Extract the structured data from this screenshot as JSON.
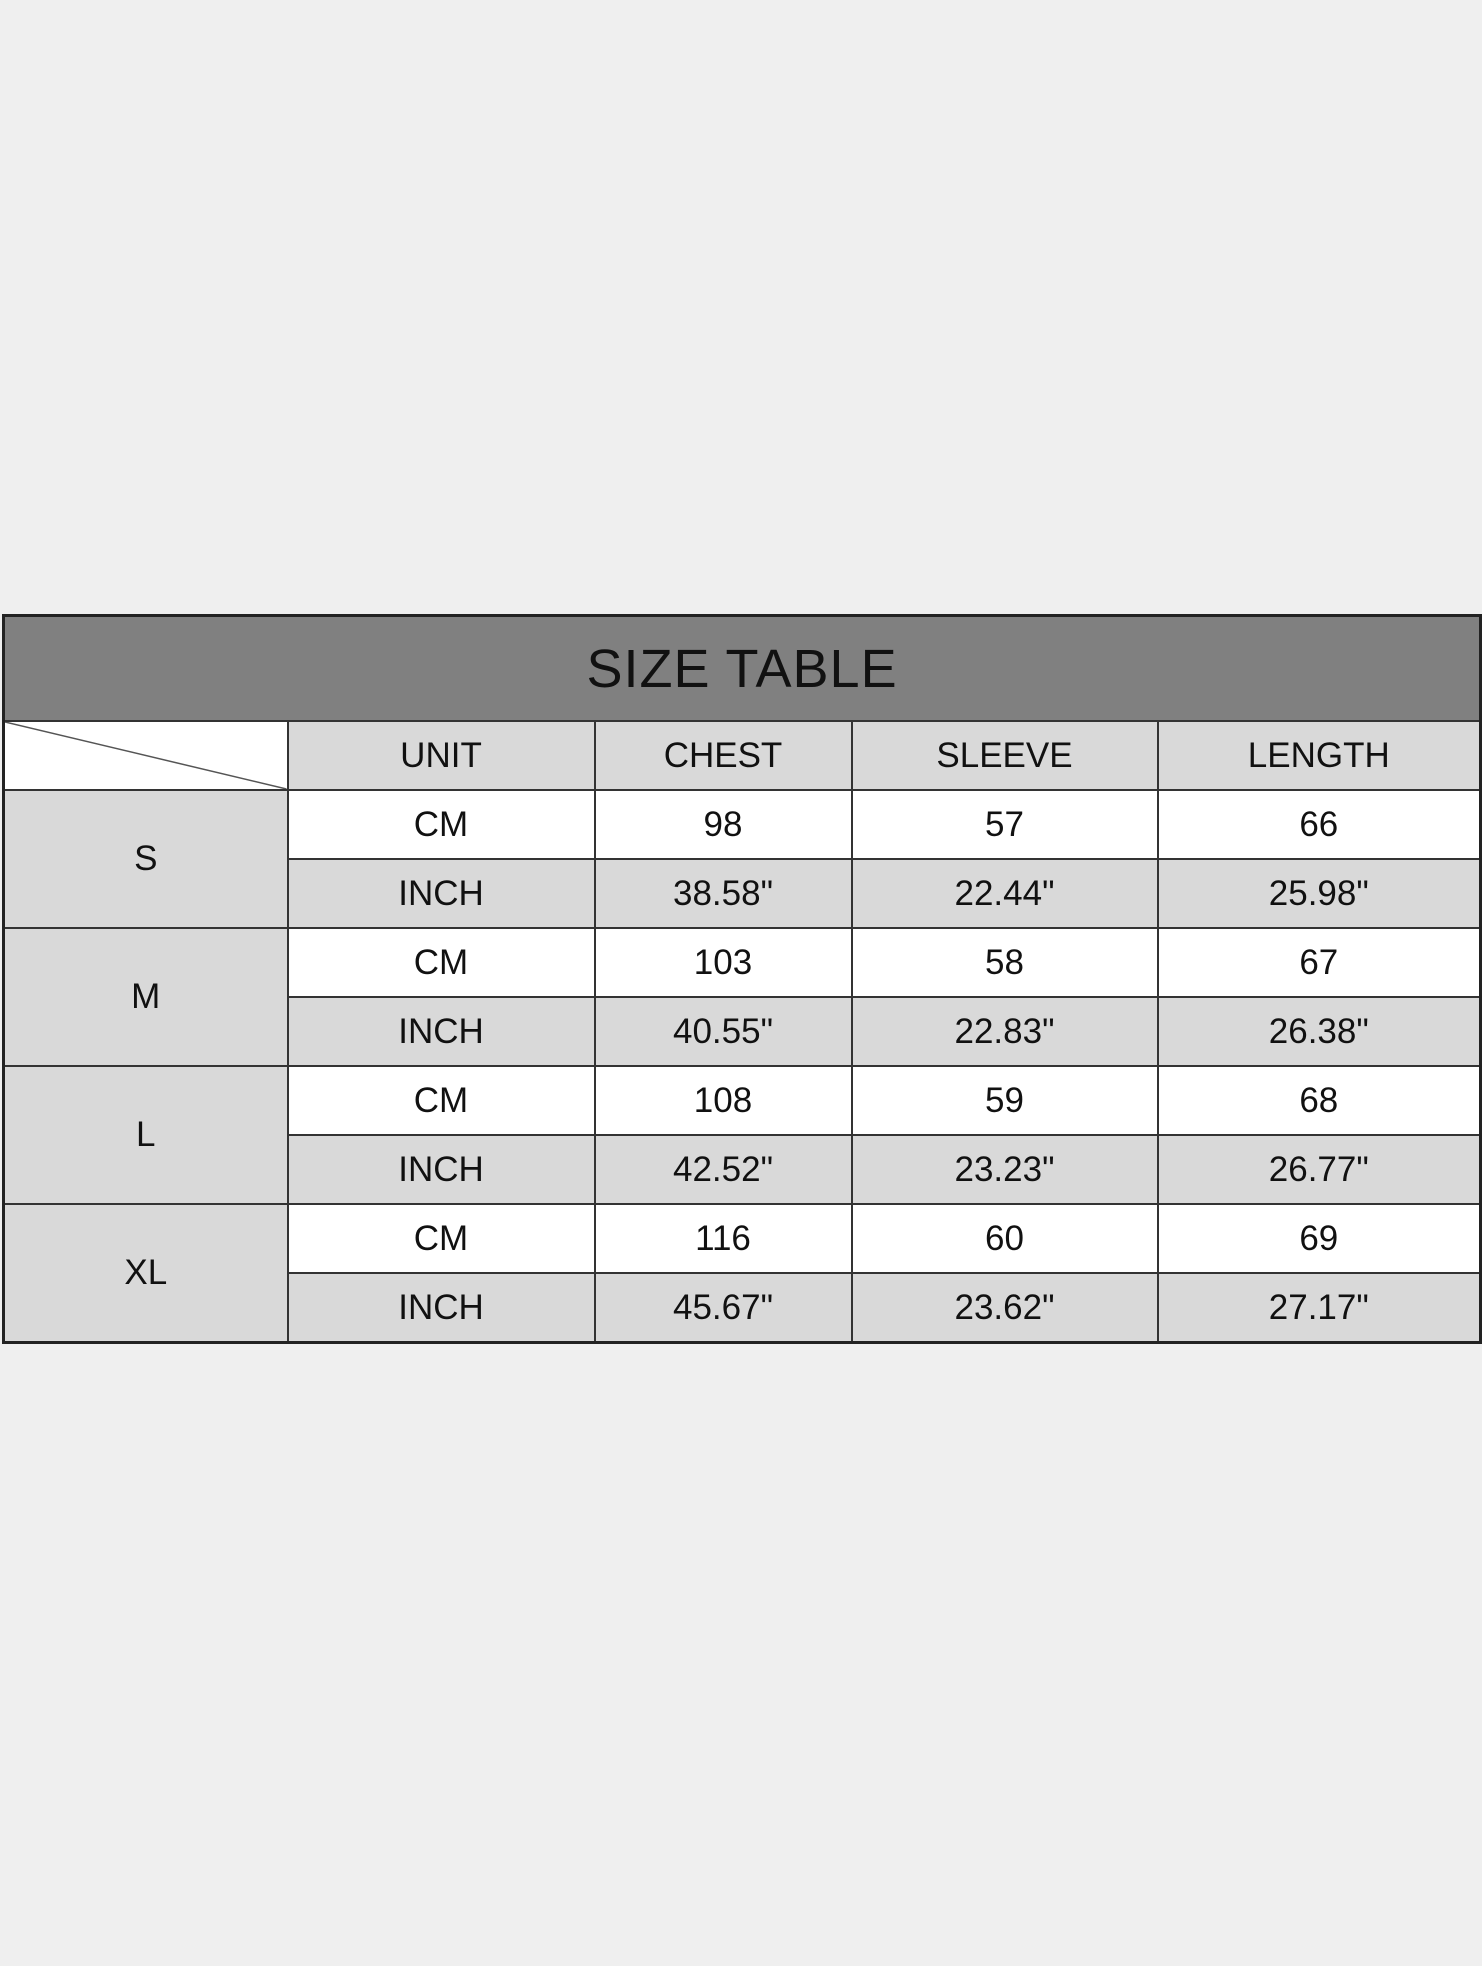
{
  "title": "SIZE TABLE",
  "headers": [
    "UNIT",
    "CHEST",
    "SLEEVE",
    "LENGTH"
  ],
  "rows": [
    {
      "size": "S",
      "cm": [
        "CM",
        "98",
        "57",
        "66"
      ],
      "inch": [
        "INCH",
        "38.58\"",
        "22.44\"",
        "25.98\""
      ]
    },
    {
      "size": "M",
      "cm": [
        "CM",
        "103",
        "58",
        "67"
      ],
      "inch": [
        "INCH",
        "40.55\"",
        "22.83\"",
        "26.38\""
      ]
    },
    {
      "size": "L",
      "cm": [
        "CM",
        "108",
        "59",
        "68"
      ],
      "inch": [
        "INCH",
        "42.52\"",
        "23.23\"",
        "26.77\""
      ]
    },
    {
      "size": "XL",
      "cm": [
        "CM",
        "116",
        "60",
        "69"
      ],
      "inch": [
        "INCH",
        "45.67\"",
        "23.62\"",
        "27.17\""
      ]
    }
  ],
  "colors": {
    "title_bg": "#808080",
    "shaded_cell": "#d9d9d9",
    "page_bg": "#efefef"
  }
}
